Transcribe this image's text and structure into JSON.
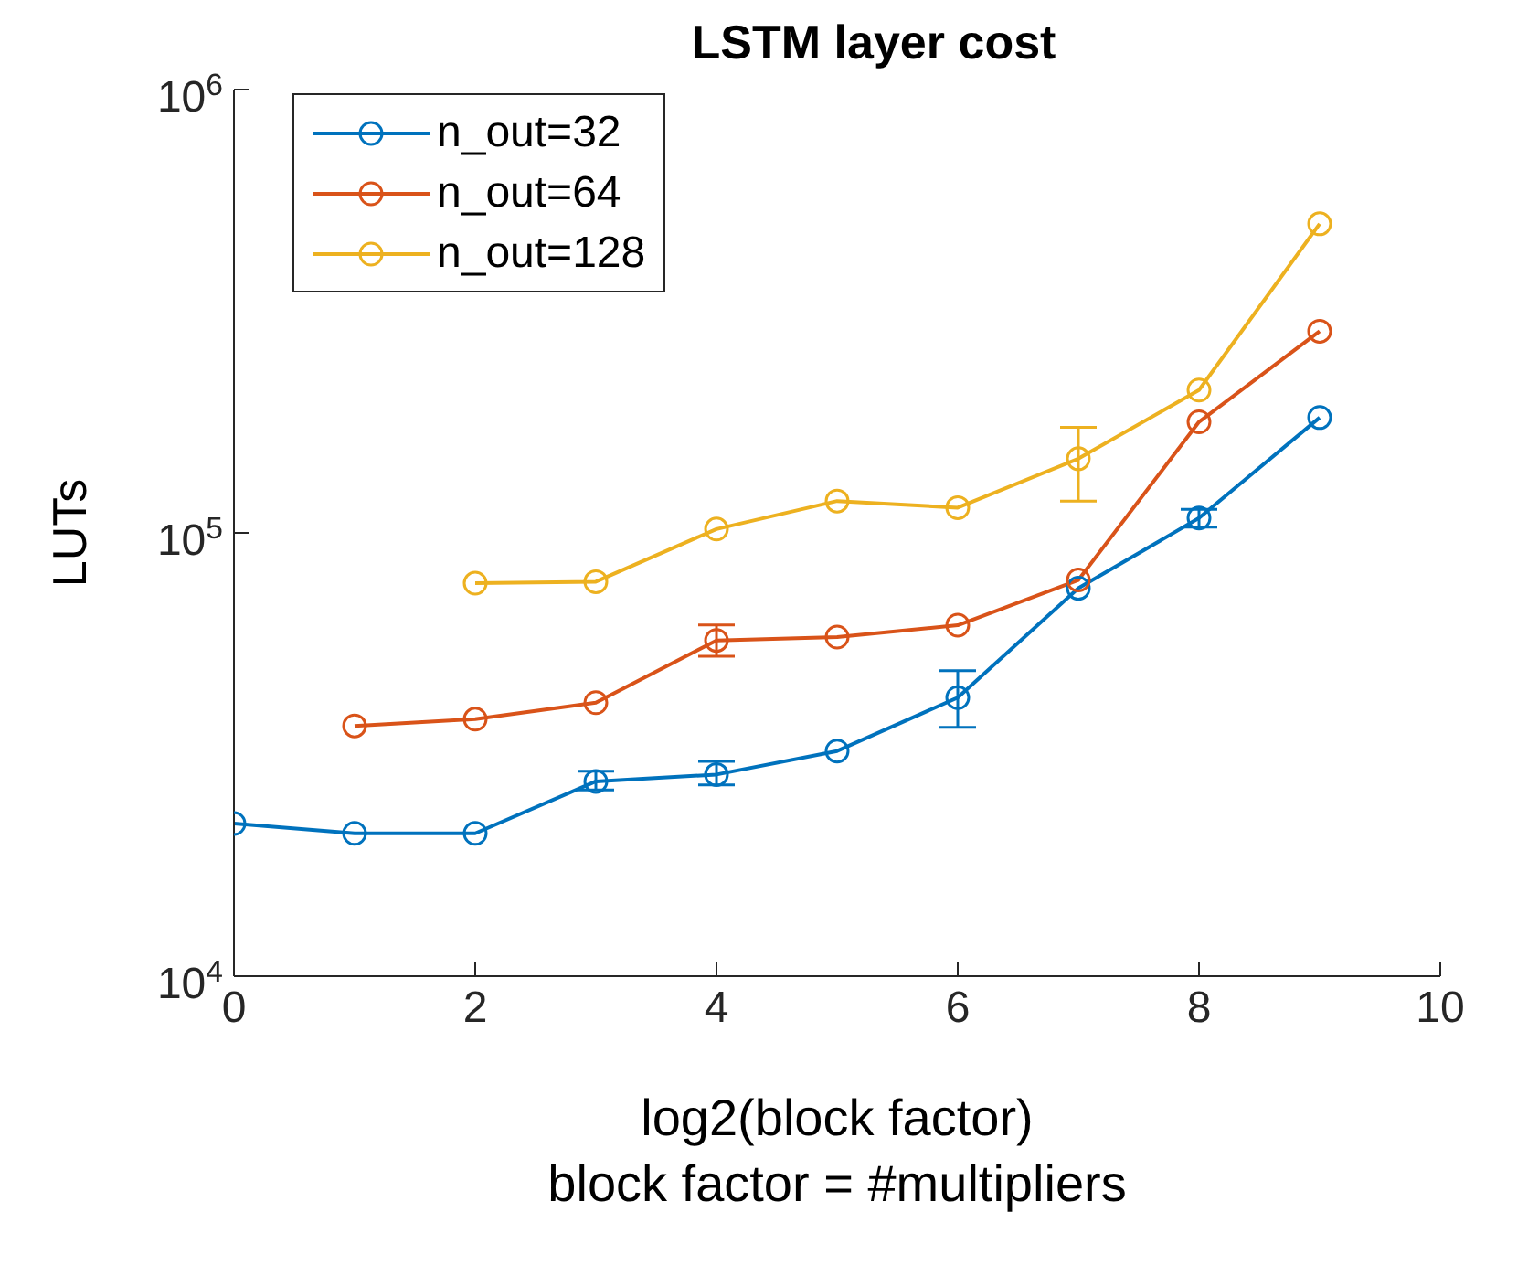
{
  "chart_data": {
    "type": "line",
    "title": "LSTM layer cost",
    "xlabel": "log2(block factor)\nblock factor = #multipliers",
    "ylabel": "LUTs",
    "x": [
      0,
      1,
      2,
      3,
      4,
      5,
      6,
      7,
      8,
      9
    ],
    "series": [
      {
        "name": "n_out=32",
        "color": "#0072bd",
        "values": [
          22100,
          21000,
          21000,
          27500,
          28500,
          32200,
          42500,
          75000,
          108000,
          182000
        ],
        "errors": [
          null,
          null,
          null,
          [
            26300,
            29000
          ],
          [
            27000,
            30500
          ],
          null,
          [
            36400,
            48900
          ],
          null,
          [
            103000,
            113000
          ],
          null
        ]
      },
      {
        "name": "n_out=64",
        "color": "#d95319",
        "values": [
          null,
          36700,
          38000,
          41400,
          57200,
          58200,
          61900,
          78300,
          178000,
          285000
        ],
        "errors": [
          null,
          null,
          null,
          null,
          [
            52700,
            62000
          ],
          null,
          null,
          null,
          null,
          null
        ]
      },
      {
        "name": "n_out=128",
        "color": "#edb120",
        "values": [
          null,
          null,
          77000,
          77600,
          102000,
          118000,
          114000,
          147000,
          210000,
          498000
        ],
        "errors": [
          null,
          null,
          null,
          null,
          null,
          null,
          null,
          [
            118000,
            173000
          ],
          null,
          null
        ]
      }
    ],
    "xlim": [
      0,
      10
    ],
    "xticks": [
      0,
      2,
      4,
      6,
      8,
      10
    ],
    "ylim": [
      10000,
      1000000
    ],
    "yticks": [
      {
        "value": 10000,
        "label": "10$^{4}$"
      },
      {
        "value": 100000,
        "label": "10$^{5}$"
      },
      {
        "value": 1000000,
        "label": "10$^{6}$"
      }
    ],
    "log": true,
    "grid": false,
    "legend": "top left",
    "marker": "circle",
    "line_style": "solid"
  }
}
